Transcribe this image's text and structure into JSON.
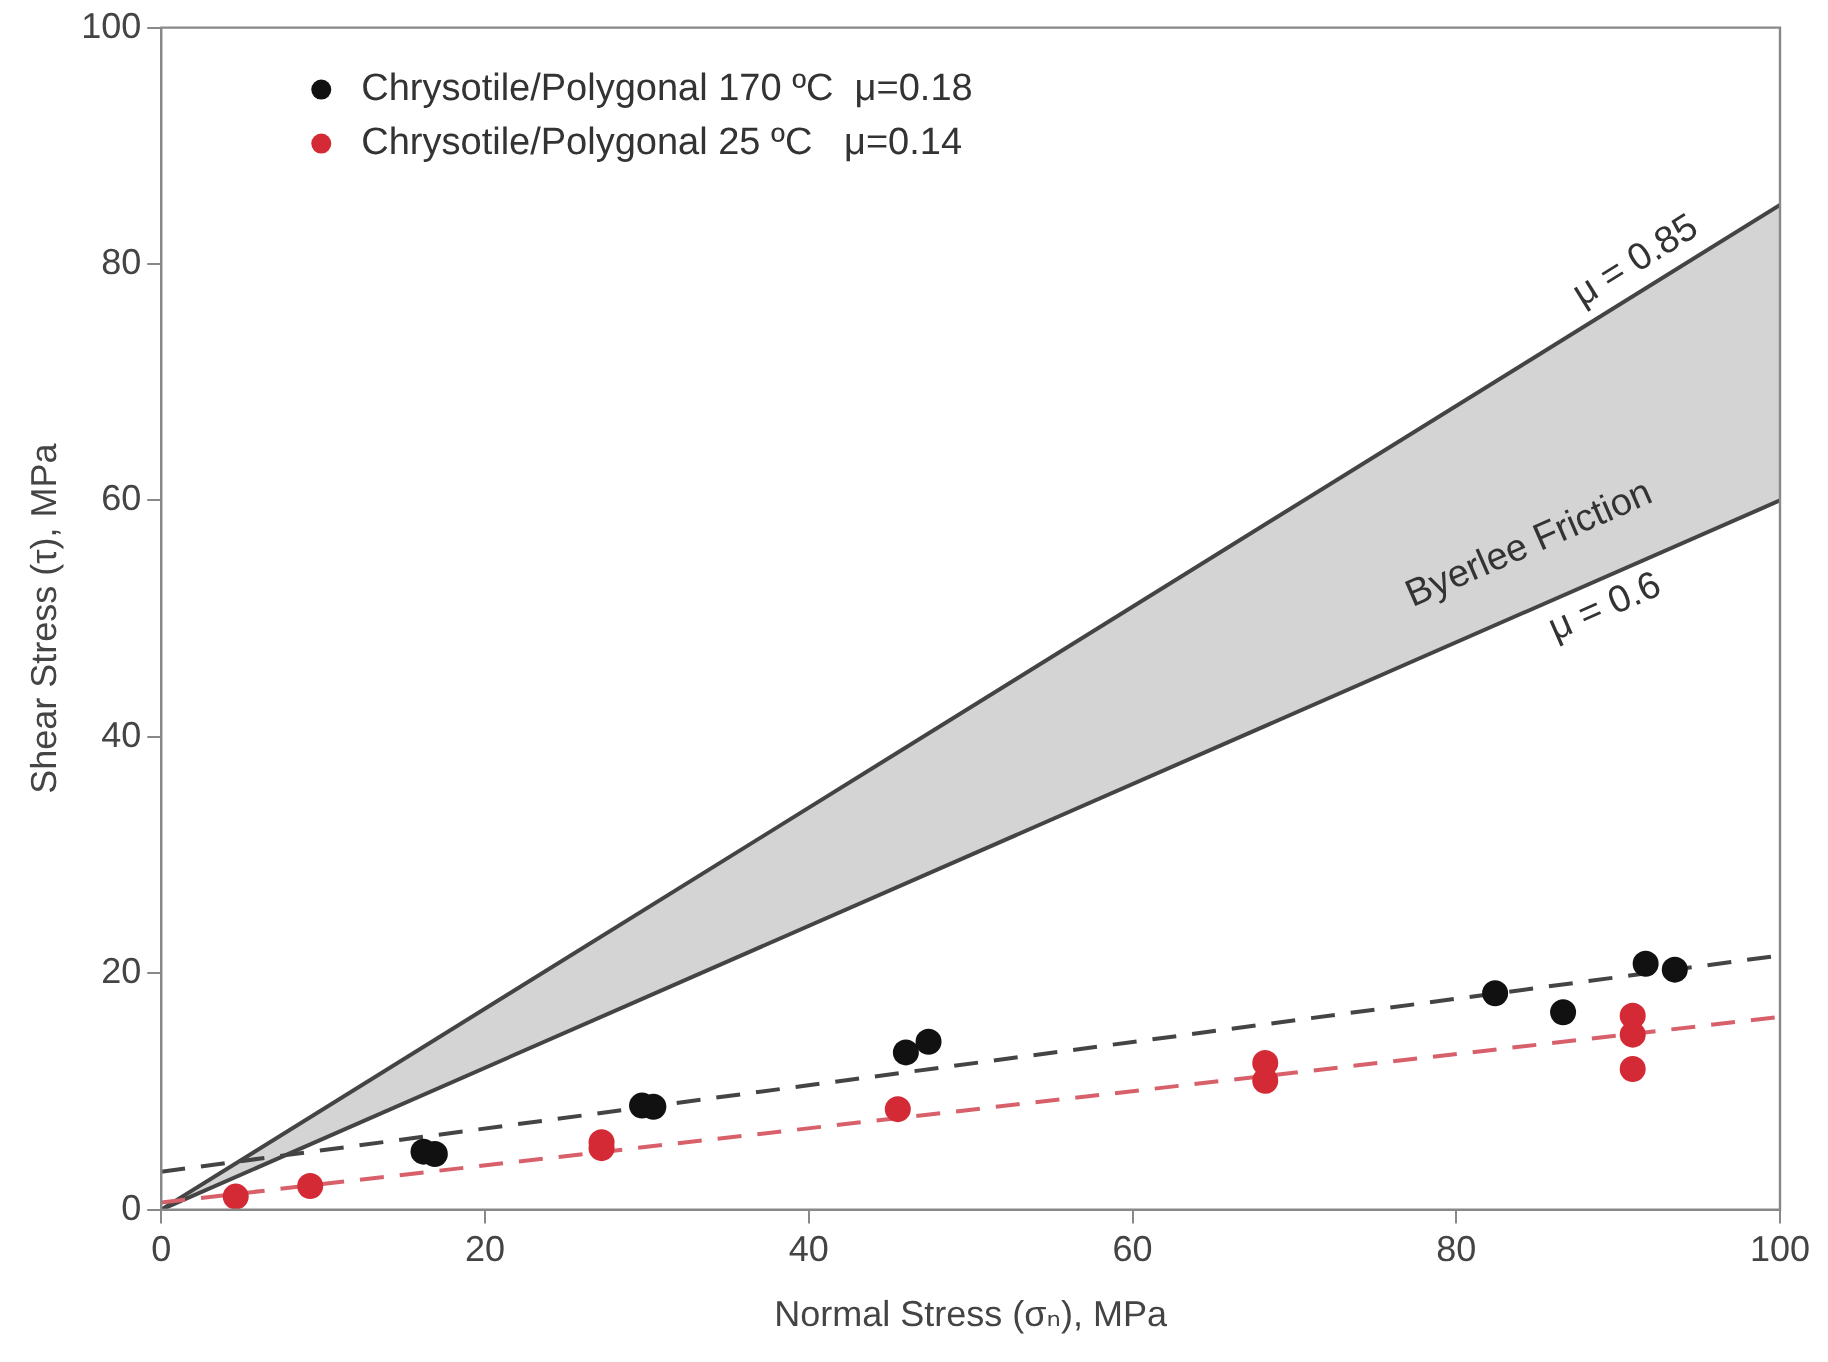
{
  "chart_data": {
    "type": "scatter",
    "xlabel": "Normal Stress (σₙ), MPa",
    "ylabel": "Shear Stress (τ), MPa",
    "xlim": [
      0,
      100
    ],
    "ylim": [
      0,
      100
    ],
    "xticks": [
      0,
      20,
      40,
      60,
      80,
      100
    ],
    "yticks": [
      0,
      20,
      40,
      60,
      80,
      100
    ],
    "grid": false,
    "legend": "top left",
    "marker": "circle",
    "series": [
      {
        "name": "Chrysotile/Polygonal 170 ºC  μ=0.18",
        "color": "#111111",
        "x": [
          16.2,
          16.9,
          29.7,
          30.4,
          46.0,
          47.4,
          82.4,
          86.6,
          91.7,
          93.5
        ],
        "values": [
          4.9,
          4.7,
          8.8,
          8.7,
          13.3,
          14.2,
          18.3,
          16.7,
          20.8,
          20.3
        ]
      },
      {
        "name": "Chrysotile/Polygonal 25 ºC   μ=0.14",
        "color": "#d42a35",
        "x": [
          4.6,
          9.2,
          27.2,
          27.2,
          45.5,
          68.2,
          68.2,
          90.9,
          90.9,
          90.9
        ],
        "values": [
          1.1,
          2.0,
          5.7,
          5.2,
          8.5,
          12.4,
          10.9,
          16.4,
          14.8,
          11.9
        ]
      },
      {
        "color": "#444444",
        "type": "line",
        "line_style": "dashed",
        "marker": "none",
        "x": [
          0,
          100
        ],
        "values": [
          3.2,
          21.5
        ]
      },
      {
        "color": "#d8606a",
        "type": "line",
        "line_style": "dashed",
        "marker": "none",
        "x": [
          0,
          100
        ],
        "values": [
          0.6,
          16.3
        ]
      },
      {
        "color": "#444444",
        "type": "line",
        "line_style": "solid",
        "marker": "none",
        "x": [
          0,
          100
        ],
        "values": [
          0,
          85
        ]
      },
      {
        "color": "#444444",
        "type": "line",
        "line_style": "solid",
        "marker": "none",
        "x": [
          0,
          100
        ],
        "values": [
          0,
          60
        ],
        "lower": [
          0,
          60
        ],
        "upper": [
          0,
          85
        ]
      }
    ],
    "annotations": [
      "μ = 0.85",
      "Byerlee Friction",
      "μ = 0.6"
    ]
  }
}
